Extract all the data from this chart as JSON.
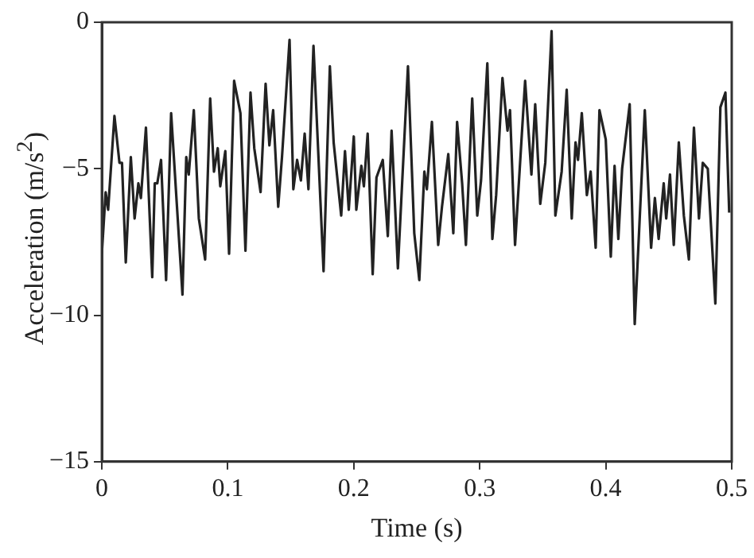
{
  "chart_data": {
    "type": "line",
    "xlabel": "Time (s)",
    "ylabel": "Acceleration (m/s$^{2}$)",
    "xlim": [
      0,
      0.5
    ],
    "xticks": [
      0,
      0.1,
      0.2,
      0.3,
      0.4,
      0.5
    ],
    "ylim": [
      -15,
      0
    ],
    "yticks": [
      -15,
      -10,
      -5,
      0
    ],
    "series": [
      {
        "color": "#222222",
        "line_style": "solid",
        "x": [
          0.0,
          0.003,
          0.005,
          0.01,
          0.014,
          0.016,
          0.019,
          0.023,
          0.026,
          0.029,
          0.031,
          0.035,
          0.04,
          0.042,
          0.044,
          0.047,
          0.051,
          0.055,
          0.064,
          0.067,
          0.069,
          0.073,
          0.077,
          0.082,
          0.086,
          0.089,
          0.092,
          0.094,
          0.098,
          0.101,
          0.105,
          0.11,
          0.114,
          0.118,
          0.121,
          0.126,
          0.13,
          0.133,
          0.136,
          0.14,
          0.143,
          0.149,
          0.152,
          0.155,
          0.158,
          0.161,
          0.164,
          0.168,
          0.176,
          0.181,
          0.184,
          0.19,
          0.193,
          0.196,
          0.2,
          0.202,
          0.206,
          0.208,
          0.211,
          0.215,
          0.218,
          0.223,
          0.227,
          0.23,
          0.235,
          0.243,
          0.248,
          0.252,
          0.256,
          0.258,
          0.262,
          0.267,
          0.27,
          0.275,
          0.279,
          0.282,
          0.286,
          0.289,
          0.294,
          0.298,
          0.301,
          0.306,
          0.31,
          0.313,
          0.318,
          0.322,
          0.324,
          0.328,
          0.336,
          0.341,
          0.344,
          0.348,
          0.352,
          0.357,
          0.36,
          0.365,
          0.369,
          0.373,
          0.376,
          0.378,
          0.381,
          0.385,
          0.388,
          0.392,
          0.395,
          0.4,
          0.404,
          0.407,
          0.41,
          0.413,
          0.419,
          0.423,
          0.431,
          0.436,
          0.439,
          0.442,
          0.446,
          0.448,
          0.451,
          0.454,
          0.458,
          0.462,
          0.466,
          0.47,
          0.474,
          0.477,
          0.481,
          0.487,
          0.491,
          0.495,
          0.498
        ],
        "values": [
          -7.9,
          -5.8,
          -6.4,
          -3.2,
          -4.8,
          -4.8,
          -8.2,
          -4.6,
          -6.7,
          -5.5,
          -6.0,
          -3.6,
          -8.7,
          -5.5,
          -5.5,
          -4.7,
          -8.8,
          -3.1,
          -9.3,
          -4.6,
          -5.2,
          -3.0,
          -6.7,
          -8.1,
          -2.6,
          -5.1,
          -4.3,
          -5.6,
          -4.4,
          -7.9,
          -2.0,
          -3.1,
          -7.8,
          -2.4,
          -4.3,
          -5.8,
          -2.1,
          -4.2,
          -3.0,
          -6.3,
          -4.6,
          -0.6,
          -5.7,
          -4.7,
          -5.4,
          -3.8,
          -5.7,
          -0.8,
          -8.5,
          -1.5,
          -4.1,
          -6.6,
          -4.4,
          -6.4,
          -3.9,
          -6.4,
          -4.9,
          -5.6,
          -3.8,
          -8.6,
          -5.3,
          -4.7,
          -7.3,
          -3.7,
          -8.4,
          -1.5,
          -7.2,
          -8.8,
          -5.1,
          -5.7,
          -3.4,
          -7.6,
          -6.3,
          -4.5,
          -7.2,
          -3.4,
          -5.5,
          -7.6,
          -2.6,
          -6.6,
          -5.4,
          -1.4,
          -7.4,
          -5.9,
          -1.9,
          -3.7,
          -3.0,
          -7.6,
          -2.0,
          -5.2,
          -2.8,
          -6.2,
          -4.8,
          -0.3,
          -6.6,
          -5.1,
          -2.3,
          -6.7,
          -4.1,
          -4.7,
          -3.1,
          -5.9,
          -5.1,
          -7.7,
          -3.0,
          -4.0,
          -8.0,
          -4.9,
          -7.4,
          -5.0,
          -2.8,
          -10.3,
          -3.0,
          -7.7,
          -6.0,
          -7.4,
          -5.5,
          -6.7,
          -5.2,
          -7.6,
          -4.1,
          -6.6,
          -8.1,
          -3.6,
          -6.7,
          -4.8,
          -5.0,
          -9.6,
          -2.9,
          -2.4,
          -6.5
        ]
      }
    ]
  }
}
